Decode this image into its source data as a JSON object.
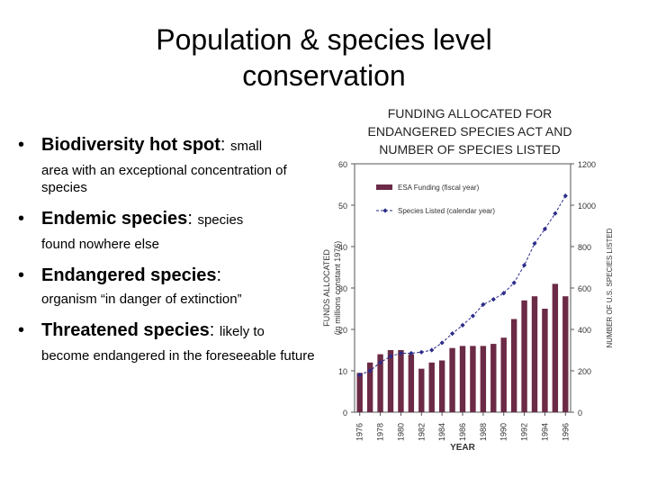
{
  "slide": {
    "title_line1": "Population & species level",
    "title_line2": "conservation",
    "bullets": [
      {
        "term": "Biodiversity hot spot",
        "rest": "small",
        "sub": "area with an exceptional concentration of species"
      },
      {
        "term": "Endemic species",
        "rest": "species",
        "sub": "found nowhere else"
      },
      {
        "term": "Endangered species",
        "rest": "",
        "sub": "organism “in danger of extinction”"
      },
      {
        "term": "Threatened species",
        "rest": "likely to",
        "sub": "become endangered in the foreseeable future"
      }
    ]
  },
  "chart_data": {
    "type": "bar",
    "title_lines": [
      "FUNDING ALLOCATED FOR",
      "ENDANGERED SPECIES ACT AND",
      "NUMBER OF SPECIES LISTED"
    ],
    "xlabel": "YEAR",
    "ylabel_line1": "FUNDS ALLOCATED",
    "ylabel_line2": "(in millions constant 1976)",
    "y2label": "NUMBER OF U.S. SPECIES LISTED",
    "ylim": [
      0,
      60
    ],
    "y_ticks": [
      0,
      10,
      20,
      30,
      40,
      50,
      60
    ],
    "y_tick_labels": [
      "0",
      "10",
      "20",
      "30",
      "40",
      "50",
      "60"
    ],
    "y2lim": [
      0,
      1200
    ],
    "y2_ticks": [
      0,
      200,
      400,
      600,
      800,
      1000,
      1200
    ],
    "y2_tick_labels": [
      "0",
      "200",
      "400",
      "600",
      "800",
      "1000",
      "1200"
    ],
    "x": [
      1976,
      1977,
      1978,
      1979,
      1980,
      1981,
      1982,
      1983,
      1984,
      1985,
      1986,
      1987,
      1988,
      1989,
      1990,
      1991,
      1992,
      1993,
      1994,
      1995,
      1996
    ],
    "x_tick_labels": [
      "1976",
      "1978",
      "1980",
      "1982",
      "1984",
      "1986",
      "1988",
      "1990",
      "1992",
      "1994",
      "1996"
    ],
    "legend_position": "top-right",
    "series": [
      {
        "name": "ESA Funding (fiscal year)",
        "type": "bar",
        "axis": "left",
        "color": "#6b2a45",
        "values": [
          9.5,
          12,
          14,
          15,
          15,
          14,
          10.5,
          12,
          12.5,
          15.5,
          16,
          16,
          16,
          16.5,
          18,
          22.5,
          27,
          28,
          25,
          31,
          28
        ]
      },
      {
        "name": "Species Listed (calendar year)",
        "type": "line",
        "axis": "right",
        "color": "#2b2b8a",
        "values": [
          180,
          200,
          240,
          270,
          285,
          285,
          290,
          300,
          335,
          380,
          420,
          465,
          520,
          545,
          575,
          625,
          710,
          815,
          885,
          960,
          1045
        ]
      }
    ]
  }
}
